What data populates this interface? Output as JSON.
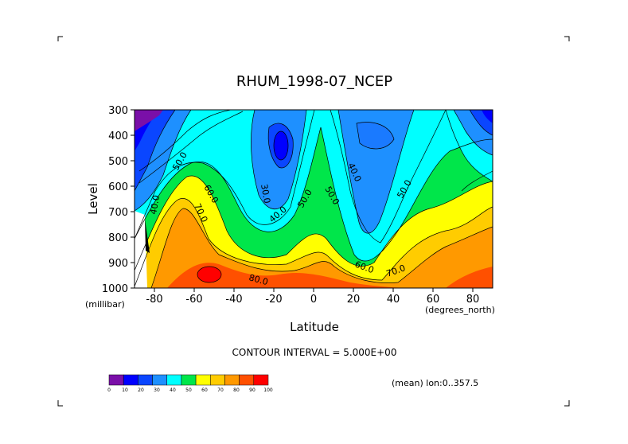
{
  "chart_data": {
    "type": "heatmap",
    "title": "RHUM_1998-07_NCEP",
    "xlabel": "Latitude",
    "ylabel": "Level",
    "x_units": "(degrees_north)",
    "y_units": "(millibar)",
    "x_ticks": [
      -80,
      -60,
      -40,
      -20,
      0,
      20,
      40,
      60,
      80
    ],
    "y_ticks": [
      300,
      400,
      500,
      600,
      700,
      800,
      900,
      1000
    ],
    "xlim": [
      -90,
      90
    ],
    "ylim": [
      1000,
      300
    ],
    "contour_interval_text": "CONTOUR INTERVAL = 5.000E+00",
    "average_note": "(mean) lon:0..357.5",
    "colorbar": {
      "ticks": [
        "0",
        "10",
        "20",
        "30",
        "40",
        "50",
        "60",
        "70",
        "80",
        "90",
        "100"
      ],
      "colors": [
        "#7a0fa8",
        "#0000ff",
        "#0a46ff",
        "#1e90ff",
        "#00ffff",
        "#00e64a",
        "#ffff00",
        "#ffcc00",
        "#ff9900",
        "#ff5000",
        "#ff0000"
      ]
    },
    "contour_labels": [
      {
        "text": "50.0",
        "lat": -75,
        "p": 510
      },
      {
        "text": "40.0",
        "lat": -83,
        "p": 690
      },
      {
        "text": "60.0",
        "lat": -62,
        "p": 610
      },
      {
        "text": "70.0",
        "lat": -58,
        "p": 690
      },
      {
        "text": "80.0",
        "lat": -38,
        "p": 955
      },
      {
        "text": "30.0",
        "lat": -25,
        "p": 620
      },
      {
        "text": "40.0",
        "lat": -17,
        "p": 715
      },
      {
        "text": "50.0",
        "lat": -2,
        "p": 640
      },
      {
        "text": "50.0",
        "lat": 9,
        "p": 615
      },
      {
        "text": "40.0",
        "lat": 30,
        "p": 550
      },
      {
        "text": "60.0",
        "lat": 29,
        "p": 920
      },
      {
        "text": "70.0",
        "lat": 42,
        "p": 940
      },
      {
        "text": "50.0",
        "lat": 51,
        "p": 620
      }
    ],
    "humidity_bands": [
      {
        "band": "80-90",
        "lat": [
          -82,
          90
        ],
        "p": [
          880,
          1000
        ]
      },
      {
        "band": "90-100",
        "lat": [
          -60,
          -48
        ],
        "p": [
          940,
          990
        ]
      },
      {
        "band": "30-40 minimum",
        "lat": [
          -20,
          -10
        ],
        "p": [
          380,
          550
        ]
      },
      {
        "band": "30-40 minimum",
        "lat": [
          22,
          40
        ],
        "p": [
          300,
          820
        ]
      },
      {
        "band": "10-20",
        "lat": [
          -90,
          -75
        ],
        "p": [
          300,
          550
        ]
      }
    ]
  }
}
